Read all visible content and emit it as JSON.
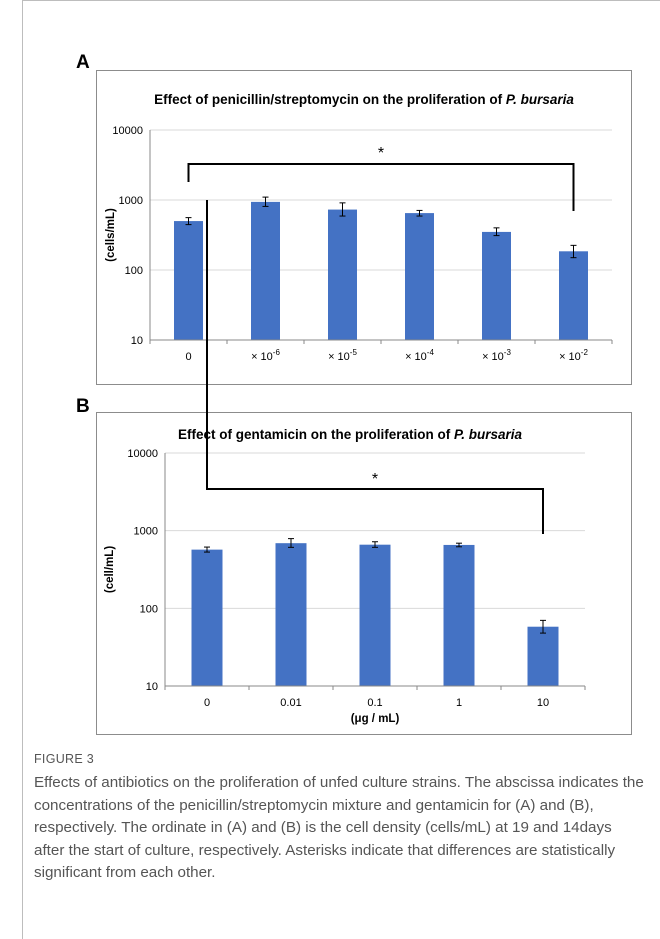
{
  "panels": [
    {
      "letter": "A",
      "title_plain": "Effect of penicillin/streptomycin on the proliferation of ",
      "title_italic": "P. bursaria",
      "color": "#4472c4",
      "chart_data": {
        "type": "bar",
        "scale": "log",
        "ylim": [
          10,
          10000
        ],
        "yticks": [
          "10",
          "100",
          "1000",
          "10000"
        ],
        "ytick_values": [
          10,
          100,
          1000,
          10000
        ],
        "ylabel": "(cells/mL)",
        "xlabel": "",
        "categories": [
          {
            "base": "0",
            "sup": ""
          },
          {
            "base": "× 10",
            "sup": "-6"
          },
          {
            "base": "× 10",
            "sup": "-5"
          },
          {
            "base": "× 10",
            "sup": "-4"
          },
          {
            "base": "× 10",
            "sup": "-3"
          },
          {
            "base": "× 10",
            "sup": "-2"
          }
        ],
        "values": [
          500,
          940,
          730,
          650,
          350,
          185
        ],
        "err_low": [
          445,
          810,
          590,
          590,
          310,
          150
        ],
        "err_high": [
          560,
          1100,
          910,
          710,
          400,
          225
        ],
        "significance": {
          "from": 0,
          "to": 5,
          "label": "*"
        }
      }
    },
    {
      "letter": "B",
      "title_plain": "Effect of gentamicin on the proliferation of ",
      "title_italic": "P. bursaria",
      "color": "#4472c4",
      "chart_data": {
        "type": "bar",
        "scale": "log",
        "ylim": [
          10,
          10000
        ],
        "yticks": [
          "10",
          "100",
          "1000",
          "10000"
        ],
        "ytick_values": [
          10,
          100,
          1000,
          10000
        ],
        "ylabel": "(cell/mL)",
        "xlabel": "(μg / mL)",
        "categories": [
          {
            "base": "0",
            "sup": ""
          },
          {
            "base": "0.01",
            "sup": ""
          },
          {
            "base": "0.1",
            "sup": ""
          },
          {
            "base": "1",
            "sup": ""
          },
          {
            "base": "10",
            "sup": ""
          }
        ],
        "values": [
          570,
          690,
          660,
          655,
          58
        ],
        "err_low": [
          530,
          610,
          610,
          620,
          48
        ],
        "err_high": [
          615,
          790,
          720,
          690,
          70
        ],
        "significance": {
          "from": 0,
          "to": 4,
          "label": "*"
        }
      }
    }
  ],
  "caption": {
    "label": "FIGURE 3",
    "text": "Effects of antibiotics on the proliferation of unfed culture strains. The abscissa indicates the concentrations of the penicillin/streptomycin mixture and gentamicin for (A) and (B), respectively. The ordinate in (A) and (B) is the cell density (cells/mL) at 19 and 14days after the start of culture, respectively. Asterisks indicate that differences are statistically significant from each other."
  }
}
